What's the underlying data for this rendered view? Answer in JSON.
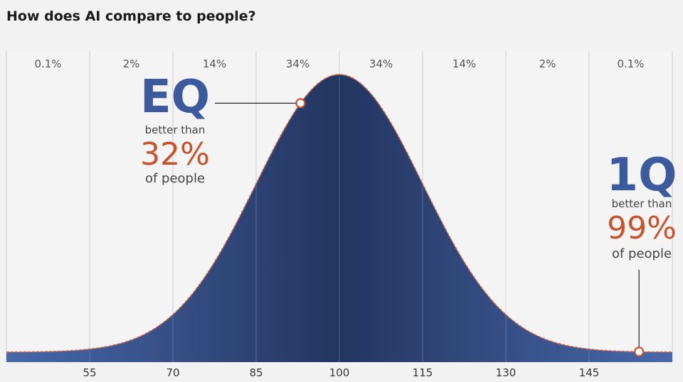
{
  "title": "How does AI compare to people?",
  "chart_data": {
    "type": "area",
    "distribution": "normal",
    "mean": 100,
    "sd": 15,
    "x_ticks": [
      "55",
      "70",
      "85",
      "100",
      "115",
      "130",
      "145"
    ],
    "xlim": [
      40,
      160
    ],
    "band_percentages": [
      "0.1%",
      "2%",
      "14%",
      "34%",
      "34%",
      "14%",
      "2%",
      "0.1%"
    ],
    "annotations": [
      {
        "label": "EQ",
        "line1": "better than",
        "value": "32%",
        "line2": "of people",
        "x": 93
      },
      {
        "label": "1Q",
        "line1": "better than",
        "value": "99%",
        "line2": "of people",
        "x": 154
      }
    ]
  },
  "colors": {
    "curve_dark": "#233560",
    "curve_light": "#4868aa",
    "outline": "#d06040",
    "marker": "#c4532e",
    "label_blue": "#3d5a9c",
    "label_orange": "#c4532e",
    "gridline": "#d4d4d4"
  }
}
